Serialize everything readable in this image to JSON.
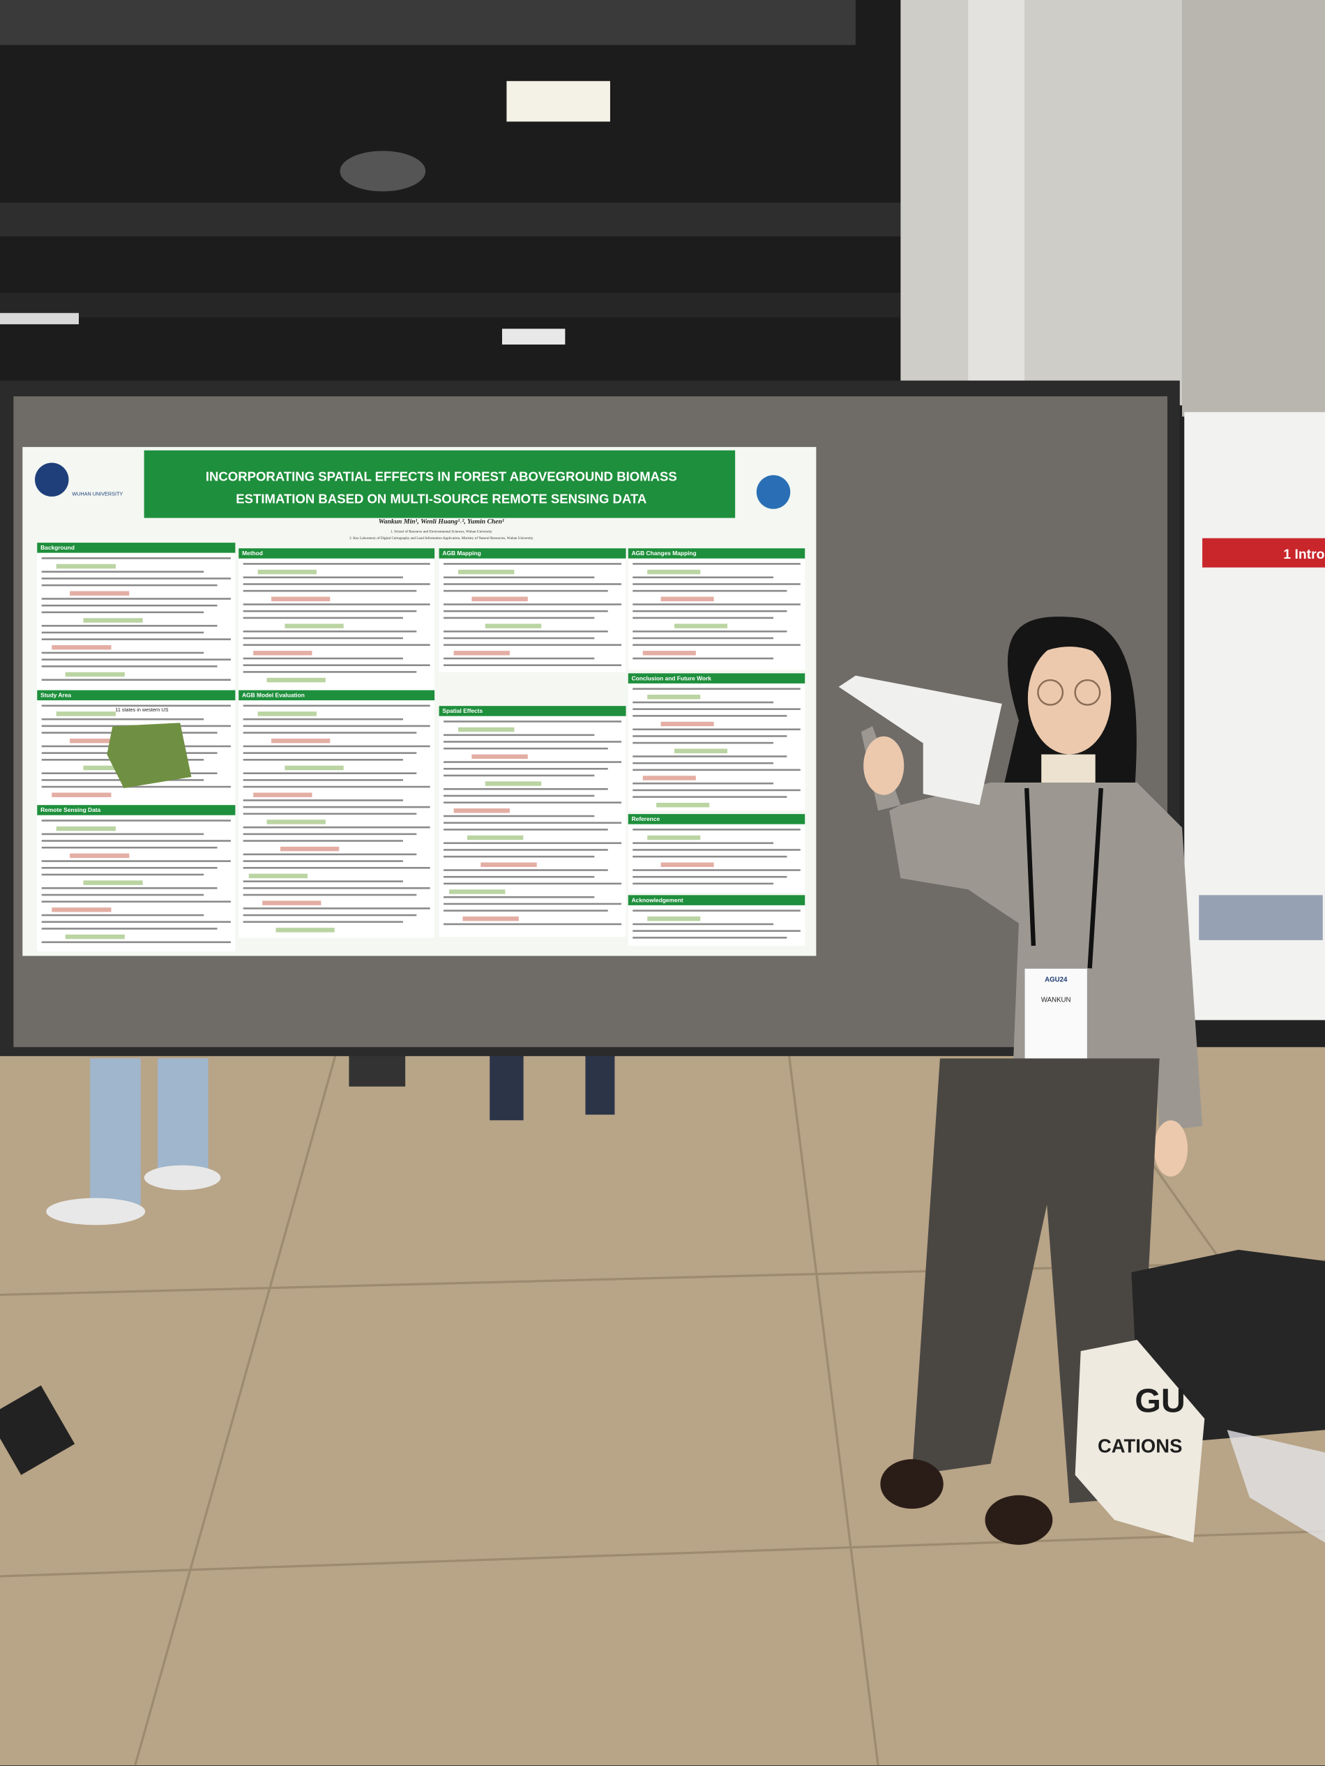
{
  "poster": {
    "university": "WUHAN UNIVERSITY",
    "title_lines": [
      "INCORPORATING SPATIAL EFFECTS IN FOREST ABOVEGROUND BIOMASS",
      "ESTIMATION BASED ON MULTI-SOURCE REMOTE SENSING DATA"
    ],
    "authors": "Wankun Min¹, Wenli Huang¹˒², Yumin Chen¹",
    "affiliations": [
      "1. School of Resource and Environmental Sciences, Wuhan University",
      "2. Key Laboratory of Digital Cartography and Land Information Application, Ministry of Natural Resources, Wuhan University"
    ],
    "sections": [
      "Background",
      "Method",
      "AGB Mapping",
      "AGB Changes Mapping",
      "Study Area",
      "AGB Model Evaluation",
      "Spatial Effects",
      "Conclusion and Future Work",
      "Remote Sensing Data",
      "Reference",
      "Acknowledgement"
    ],
    "study_area_note": "11 states in western US"
  },
  "neighbor_poster": {
    "heading": "1 Intro"
  },
  "badge": {
    "event": "AGU24",
    "name": "WANKUN"
  },
  "bag": {
    "lines": [
      "GU",
      "CATIONS"
    ]
  }
}
